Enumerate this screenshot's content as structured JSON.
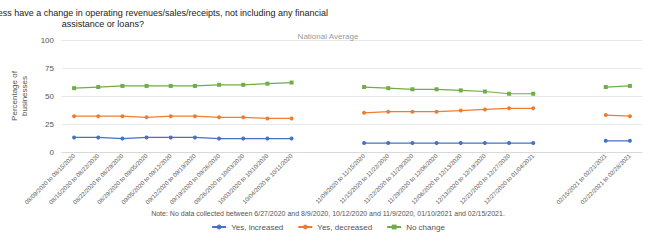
{
  "chart_data": {
    "type": "line",
    "title": "In the last week, did this business have a change in operating revenues/sales/receipts, not including any financial\nassistance or loans?",
    "subtitle": "National Average",
    "ylabel": "Percentage of\nbusinesses",
    "annotations": [
      "Note: No data collected between 6/27/2020 and 8/9/2020, 10/12/2020 and 11/9/2020, 01/10/2021 and 02/15/2021."
    ],
    "categories": [
      "08/09/2020 to 08/15/2020",
      "08/15/2020 to 08/22/2020",
      "08/22/2020 to 08/29/2020",
      "08/29/2020 to 09/05/2020",
      "09/05/2020 to 09/12/2020",
      "09/12/2020 to 09/19/2020",
      "09/19/2020 to 09/26/2020",
      "09/26/2020 to 10/03/2020",
      "10/03/2020 to 10/10/2020",
      "10/04/2020 to 10/11/2020",
      null,
      null,
      "11/09/2020 to 11/15/2020",
      "11/15/2020 to 11/22/2020",
      "11/22/2020 to 11/29/2020",
      "11/29/2020 to 12/06/2020",
      "12/06/2020 to 12/13/2020",
      "12/13/2020 to 12/19/2020",
      "12/21/2020 to 12/27/2020",
      "12/27/2020 to 01/04/2021",
      null,
      null,
      "02/15/2021 to 02/21/2021",
      "02/22/2021 to 02/28/2021"
    ],
    "series": [
      {
        "name": "Yes, increased",
        "color": "#4472c4",
        "marker": "circle",
        "values": [
          13,
          13,
          12,
          13,
          13,
          13,
          12,
          12,
          12,
          12,
          null,
          null,
          8,
          8,
          8,
          8,
          8,
          8,
          8,
          8,
          null,
          null,
          10,
          10
        ]
      },
      {
        "name": "Yes, decreased",
        "color": "#ed7d31",
        "marker": "circle",
        "values": [
          32,
          32,
          32,
          31,
          32,
          32,
          31,
          31,
          30,
          30,
          null,
          null,
          35,
          36,
          36,
          36,
          37,
          38,
          39,
          39,
          null,
          null,
          33,
          32
        ]
      },
      {
        "name": "No change",
        "color": "#70ad47",
        "marker": "square",
        "values": [
          57,
          58,
          59,
          59,
          59,
          59,
          60,
          60,
          61,
          62,
          null,
          null,
          58,
          57,
          56,
          56,
          55,
          54,
          52,
          52,
          null,
          null,
          58,
          59
        ]
      }
    ],
    "ylim": [
      0,
      100
    ],
    "yticks": [
      0,
      25,
      50,
      75,
      100
    ],
    "grid": true,
    "legend": "bottom"
  }
}
